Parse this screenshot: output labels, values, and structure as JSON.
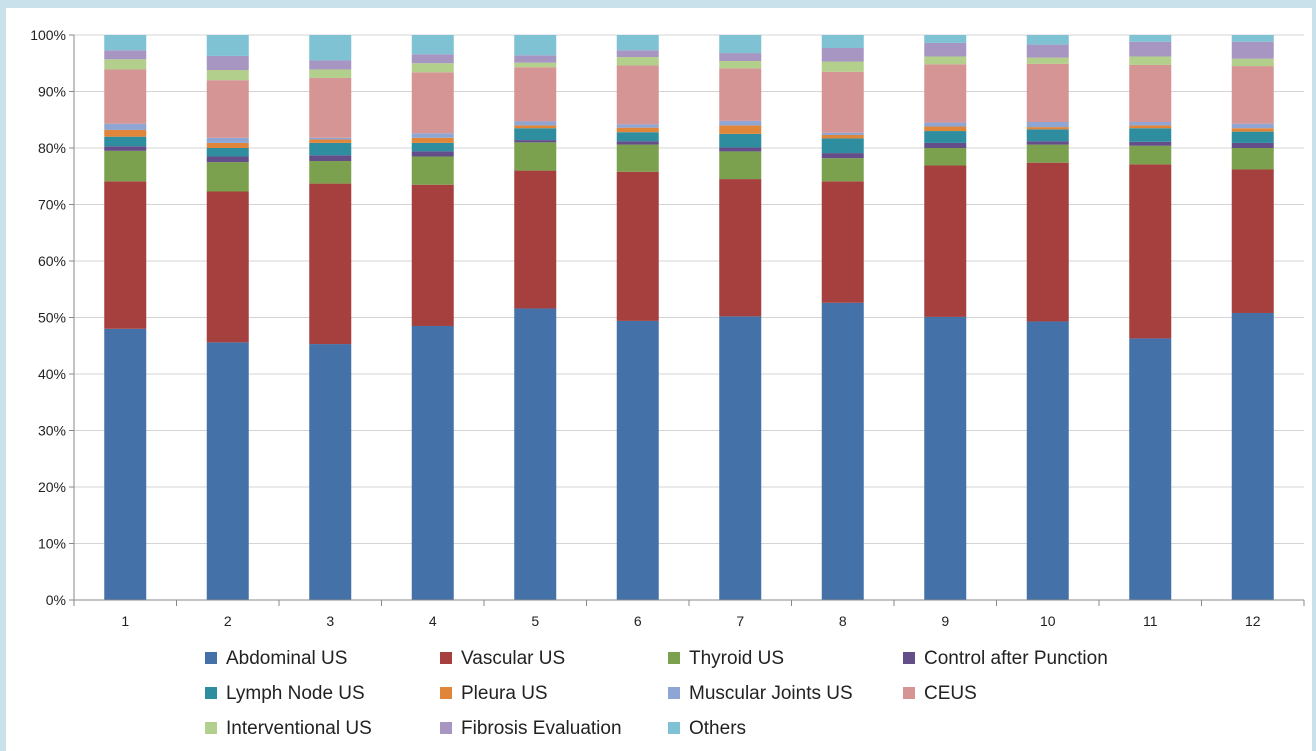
{
  "chart_data": {
    "type": "bar",
    "stacked": true,
    "normalized": true,
    "categories": [
      "1",
      "2",
      "3",
      "4",
      "5",
      "6",
      "7",
      "8",
      "9",
      "10",
      "11",
      "12"
    ],
    "y_ticks": [
      "0%",
      "10%",
      "20%",
      "30%",
      "40%",
      "50%",
      "60%",
      "70%",
      "80%",
      "90%",
      "100%"
    ],
    "ylim": [
      0,
      100
    ],
    "grid": true,
    "legend_position": "bottom",
    "series": [
      {
        "name": "Abdominal US",
        "color": "#4472a8",
        "values": [
          48.0,
          45.6,
          45.3,
          48.5,
          51.6,
          49.4,
          50.2,
          52.6,
          50.1,
          49.3,
          46.3,
          50.8
        ]
      },
      {
        "name": "Vascular US",
        "color": "#a5403e",
        "values": [
          26.1,
          26.7,
          28.4,
          25.0,
          24.4,
          26.4,
          24.3,
          21.5,
          26.8,
          28.1,
          30.8,
          25.4
        ]
      },
      {
        "name": "Thyroid US",
        "color": "#7ba04e",
        "values": [
          5.4,
          5.2,
          4.0,
          5.0,
          5.0,
          4.8,
          4.9,
          4.1,
          3.1,
          3.2,
          3.3,
          3.8
        ]
      },
      {
        "name": "Control after Punction",
        "color": "#644e89",
        "values": [
          0.8,
          1.0,
          1.0,
          0.9,
          0.4,
          0.6,
          0.7,
          0.9,
          0.9,
          0.6,
          0.7,
          0.9
        ]
      },
      {
        "name": "Lymph Node US",
        "color": "#2e8ea0",
        "values": [
          1.7,
          1.5,
          2.2,
          1.5,
          2.1,
          1.6,
          2.4,
          2.6,
          2.1,
          2.1,
          2.4,
          2.0
        ]
      },
      {
        "name": "Pleura US",
        "color": "#e0863a",
        "values": [
          1.2,
          0.9,
          0.6,
          0.9,
          0.5,
          0.8,
          1.5,
          0.6,
          0.8,
          0.4,
          0.5,
          0.6
        ]
      },
      {
        "name": "Muscular Joints US",
        "color": "#8ea6d4",
        "values": [
          1.1,
          0.9,
          0.3,
          0.8,
          0.7,
          0.6,
          0.8,
          0.4,
          0.7,
          0.9,
          0.6,
          0.8
        ]
      },
      {
        "name": "CEUS",
        "color": "#d59594",
        "values": [
          9.6,
          10.2,
          10.6,
          10.8,
          9.6,
          10.4,
          9.3,
          10.8,
          10.3,
          10.3,
          10.1,
          10.2
        ]
      },
      {
        "name": "Interventional US",
        "color": "#b3cf8c",
        "values": [
          1.8,
          1.8,
          1.5,
          1.6,
          0.8,
          1.5,
          1.3,
          1.8,
          1.4,
          1.1,
          1.5,
          1.3
        ]
      },
      {
        "name": "Fibrosis Evaluation",
        "color": "#a796c1",
        "values": [
          1.6,
          2.5,
          1.6,
          1.6,
          1.3,
          1.2,
          1.4,
          2.4,
          2.4,
          2.3,
          2.6,
          3.0
        ]
      },
      {
        "name": "Others",
        "color": "#7fc2d3",
        "values": [
          2.7,
          3.7,
          4.5,
          3.4,
          3.6,
          2.7,
          3.2,
          2.3,
          1.4,
          1.7,
          1.2,
          1.2
        ]
      }
    ]
  }
}
